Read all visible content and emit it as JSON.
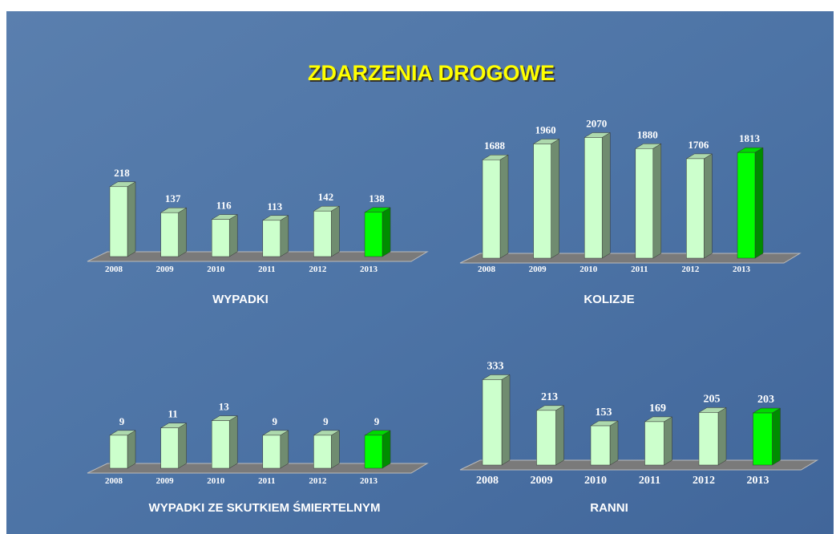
{
  "title": "ZDARZENIA DROGOWE",
  "chart_data": [
    {
      "type": "bar",
      "title": "WYPADKI",
      "categories": [
        "2008",
        "2009",
        "2010",
        "2011",
        "2012",
        "2013"
      ],
      "values": [
        218,
        137,
        116,
        113,
        142,
        138
      ],
      "colors": [
        "#ccffcc",
        "#ccffcc",
        "#ccffcc",
        "#ccffcc",
        "#ccffcc",
        "#00ff00"
      ],
      "ylim": [
        0,
        400
      ]
    },
    {
      "type": "bar",
      "title": "KOLIZJE",
      "categories": [
        "2008",
        "2009",
        "2010",
        "2011",
        "2012",
        "2013"
      ],
      "values": [
        1688,
        1960,
        2070,
        1880,
        1706,
        1813
      ],
      "colors": [
        "#ccffcc",
        "#ccffcc",
        "#ccffcc",
        "#ccffcc",
        "#ccffcc",
        "#00ff00"
      ],
      "ylim": [
        0,
        2200
      ]
    },
    {
      "type": "bar",
      "title": "WYPADKI ZE SKUTKIEM ŚMIERTELNYM",
      "categories": [
        "2008",
        "2009",
        "2010",
        "2011",
        "2012",
        "2013"
      ],
      "values": [
        9,
        11,
        13,
        9,
        9,
        9
      ],
      "colors": [
        "#ccffcc",
        "#ccffcc",
        "#ccffcc",
        "#ccffcc",
        "#ccffcc",
        "#00ff00"
      ],
      "ylim": [
        0,
        35
      ]
    },
    {
      "type": "bar",
      "title": "RANNI",
      "categories": [
        "2008",
        "2009",
        "2010",
        "2011",
        "2012",
        "2013"
      ],
      "values": [
        333,
        213,
        153,
        169,
        205,
        203
      ],
      "colors": [
        "#ccffcc",
        "#ccffcc",
        "#ccffcc",
        "#ccffcc",
        "#ccffcc",
        "#00ff00"
      ],
      "ylim": [
        0,
        500
      ]
    }
  ]
}
